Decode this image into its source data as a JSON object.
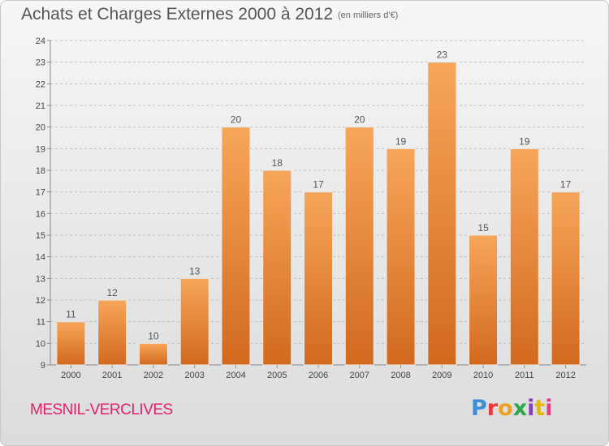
{
  "header": {
    "title": "Achats et Charges Externes 2000 à 2012",
    "subtitle": "(en milliers d'€)"
  },
  "footer": {
    "commune": "MESNIL-VERCLIVES",
    "logo_text": "Proxiti",
    "logo_colors": [
      "#3b8fd8",
      "#e83a3a",
      "#f0a020",
      "#2aa84a",
      "#8b3ec0",
      "#e8b800",
      "#e83a8a"
    ]
  },
  "colors": {
    "bar_top": "#f7a65a",
    "bar_bottom": "#d2691e",
    "bar_outline": "#e9e9e9",
    "grid": "#bfbfbf",
    "axis_text": "#444444",
    "label_text": "#555555"
  },
  "chart_data": {
    "type": "bar",
    "title": "Achats et Charges Externes 2000 à 2012",
    "categories": [
      "2000",
      "2001",
      "2002",
      "2003",
      "2004",
      "2005",
      "2006",
      "2007",
      "2008",
      "2009",
      "2010",
      "2011",
      "2012"
    ],
    "values": [
      11,
      12,
      10,
      13,
      20,
      18,
      17,
      20,
      19,
      23,
      15,
      19,
      17
    ],
    "ylim": [
      9,
      24
    ],
    "yticks": [
      9,
      10,
      11,
      12,
      13,
      14,
      15,
      16,
      17,
      18,
      19,
      20,
      21,
      22,
      23,
      24
    ],
    "grid": true,
    "data_labels": true
  }
}
